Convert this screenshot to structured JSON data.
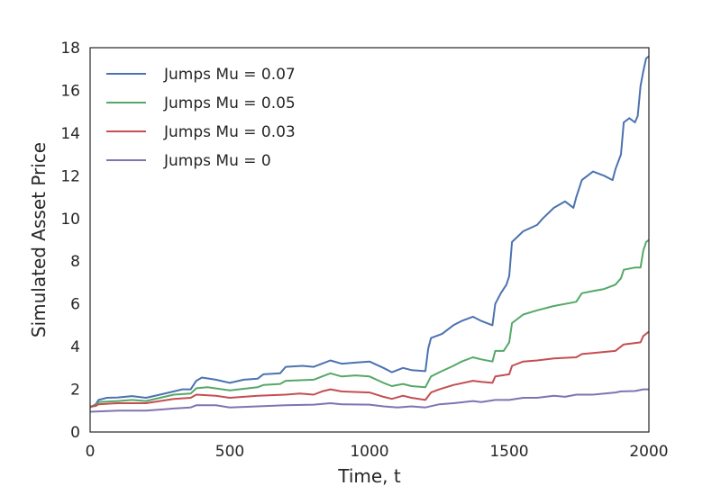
{
  "chart_data": {
    "type": "line",
    "title": "",
    "xlabel": "Time, t",
    "ylabel": "Simulated Asset Price",
    "xlim": [
      0,
      2000
    ],
    "ylim": [
      0,
      18
    ],
    "x_ticks": [
      0,
      500,
      1000,
      1500,
      2000
    ],
    "y_ticks": [
      0,
      2,
      4,
      6,
      8,
      10,
      12,
      14,
      16,
      18
    ],
    "grid": false,
    "legend_position": "top-left",
    "series": [
      {
        "name": "Jumps Mu = 0.07",
        "color": "#4c72b0",
        "points": [
          [
            0,
            1.15
          ],
          [
            20,
            1.3
          ],
          [
            30,
            1.5
          ],
          [
            60,
            1.6
          ],
          [
            100,
            1.62
          ],
          [
            150,
            1.68
          ],
          [
            200,
            1.6
          ],
          [
            250,
            1.75
          ],
          [
            300,
            1.9
          ],
          [
            330,
            2.0
          ],
          [
            360,
            2.0
          ],
          [
            380,
            2.4
          ],
          [
            400,
            2.55
          ],
          [
            450,
            2.45
          ],
          [
            500,
            2.3
          ],
          [
            550,
            2.45
          ],
          [
            600,
            2.5
          ],
          [
            620,
            2.7
          ],
          [
            680,
            2.75
          ],
          [
            700,
            3.05
          ],
          [
            760,
            3.1
          ],
          [
            800,
            3.05
          ],
          [
            830,
            3.2
          ],
          [
            860,
            3.35
          ],
          [
            900,
            3.2
          ],
          [
            950,
            3.25
          ],
          [
            1000,
            3.3
          ],
          [
            1050,
            3.0
          ],
          [
            1080,
            2.8
          ],
          [
            1120,
            3.0
          ],
          [
            1150,
            2.9
          ],
          [
            1200,
            2.85
          ],
          [
            1210,
            3.9
          ],
          [
            1220,
            4.4
          ],
          [
            1260,
            4.6
          ],
          [
            1300,
            5.0
          ],
          [
            1330,
            5.2
          ],
          [
            1370,
            5.4
          ],
          [
            1400,
            5.2
          ],
          [
            1440,
            5.0
          ],
          [
            1450,
            6.0
          ],
          [
            1470,
            6.5
          ],
          [
            1490,
            6.9
          ],
          [
            1500,
            7.3
          ],
          [
            1510,
            8.9
          ],
          [
            1550,
            9.4
          ],
          [
            1600,
            9.7
          ],
          [
            1620,
            10.0
          ],
          [
            1660,
            10.5
          ],
          [
            1700,
            10.8
          ],
          [
            1730,
            10.5
          ],
          [
            1740,
            11.0
          ],
          [
            1760,
            11.8
          ],
          [
            1800,
            12.2
          ],
          [
            1840,
            12.0
          ],
          [
            1870,
            11.8
          ],
          [
            1880,
            12.3
          ],
          [
            1900,
            13.0
          ],
          [
            1910,
            14.5
          ],
          [
            1930,
            14.7
          ],
          [
            1950,
            14.5
          ],
          [
            1960,
            14.8
          ],
          [
            1970,
            16.2
          ],
          [
            1980,
            16.9
          ],
          [
            1990,
            17.5
          ],
          [
            2000,
            17.6
          ]
        ]
      },
      {
        "name": "Jumps Mu = 0.05",
        "color": "#55a868",
        "points": [
          [
            0,
            1.15
          ],
          [
            20,
            1.25
          ],
          [
            30,
            1.4
          ],
          [
            100,
            1.45
          ],
          [
            150,
            1.5
          ],
          [
            200,
            1.45
          ],
          [
            250,
            1.6
          ],
          [
            300,
            1.75
          ],
          [
            360,
            1.8
          ],
          [
            380,
            2.05
          ],
          [
            420,
            2.1
          ],
          [
            500,
            1.95
          ],
          [
            600,
            2.1
          ],
          [
            620,
            2.2
          ],
          [
            680,
            2.25
          ],
          [
            700,
            2.4
          ],
          [
            800,
            2.45
          ],
          [
            830,
            2.6
          ],
          [
            860,
            2.75
          ],
          [
            900,
            2.6
          ],
          [
            950,
            2.65
          ],
          [
            1000,
            2.6
          ],
          [
            1050,
            2.3
          ],
          [
            1080,
            2.15
          ],
          [
            1120,
            2.25
          ],
          [
            1150,
            2.15
          ],
          [
            1200,
            2.1
          ],
          [
            1220,
            2.6
          ],
          [
            1250,
            2.8
          ],
          [
            1300,
            3.1
          ],
          [
            1330,
            3.3
          ],
          [
            1370,
            3.5
          ],
          [
            1400,
            3.4
          ],
          [
            1440,
            3.3
          ],
          [
            1450,
            3.8
          ],
          [
            1480,
            3.8
          ],
          [
            1500,
            4.2
          ],
          [
            1510,
            5.1
          ],
          [
            1550,
            5.5
          ],
          [
            1600,
            5.7
          ],
          [
            1660,
            5.9
          ],
          [
            1700,
            6.0
          ],
          [
            1740,
            6.1
          ],
          [
            1760,
            6.5
          ],
          [
            1800,
            6.6
          ],
          [
            1840,
            6.7
          ],
          [
            1880,
            6.9
          ],
          [
            1900,
            7.2
          ],
          [
            1910,
            7.6
          ],
          [
            1950,
            7.7
          ],
          [
            1970,
            7.7
          ],
          [
            1980,
            8.5
          ],
          [
            1990,
            8.9
          ],
          [
            2000,
            9.0
          ]
        ]
      },
      {
        "name": "Jumps Mu = 0.03",
        "color": "#c44e52",
        "points": [
          [
            0,
            1.2
          ],
          [
            20,
            1.22
          ],
          [
            30,
            1.3
          ],
          [
            100,
            1.35
          ],
          [
            200,
            1.35
          ],
          [
            250,
            1.45
          ],
          [
            300,
            1.55
          ],
          [
            360,
            1.6
          ],
          [
            380,
            1.75
          ],
          [
            450,
            1.7
          ],
          [
            500,
            1.6
          ],
          [
            600,
            1.7
          ],
          [
            700,
            1.75
          ],
          [
            750,
            1.8
          ],
          [
            800,
            1.75
          ],
          [
            830,
            1.9
          ],
          [
            860,
            2.0
          ],
          [
            900,
            1.9
          ],
          [
            1000,
            1.85
          ],
          [
            1050,
            1.65
          ],
          [
            1080,
            1.55
          ],
          [
            1120,
            1.7
          ],
          [
            1150,
            1.6
          ],
          [
            1200,
            1.5
          ],
          [
            1220,
            1.85
          ],
          [
            1250,
            2.0
          ],
          [
            1300,
            2.2
          ],
          [
            1370,
            2.4
          ],
          [
            1400,
            2.35
          ],
          [
            1440,
            2.3
          ],
          [
            1450,
            2.6
          ],
          [
            1500,
            2.7
          ],
          [
            1510,
            3.1
          ],
          [
            1550,
            3.3
          ],
          [
            1600,
            3.35
          ],
          [
            1660,
            3.45
          ],
          [
            1740,
            3.5
          ],
          [
            1760,
            3.65
          ],
          [
            1800,
            3.7
          ],
          [
            1880,
            3.8
          ],
          [
            1900,
            4.0
          ],
          [
            1910,
            4.1
          ],
          [
            1970,
            4.2
          ],
          [
            1980,
            4.5
          ],
          [
            2000,
            4.7
          ]
        ]
      },
      {
        "name": "Jumps Mu = 0",
        "color": "#8172b2",
        "points": [
          [
            0,
            0.95
          ],
          [
            100,
            1.0
          ],
          [
            200,
            1.0
          ],
          [
            250,
            1.05
          ],
          [
            300,
            1.1
          ],
          [
            360,
            1.15
          ],
          [
            380,
            1.25
          ],
          [
            450,
            1.25
          ],
          [
            500,
            1.15
          ],
          [
            600,
            1.2
          ],
          [
            700,
            1.25
          ],
          [
            800,
            1.28
          ],
          [
            860,
            1.35
          ],
          [
            900,
            1.3
          ],
          [
            1000,
            1.28
          ],
          [
            1050,
            1.2
          ],
          [
            1100,
            1.15
          ],
          [
            1150,
            1.2
          ],
          [
            1200,
            1.15
          ],
          [
            1250,
            1.3
          ],
          [
            1300,
            1.35
          ],
          [
            1370,
            1.45
          ],
          [
            1400,
            1.4
          ],
          [
            1450,
            1.5
          ],
          [
            1500,
            1.5
          ],
          [
            1550,
            1.6
          ],
          [
            1600,
            1.6
          ],
          [
            1660,
            1.7
          ],
          [
            1700,
            1.65
          ],
          [
            1740,
            1.75
          ],
          [
            1800,
            1.75
          ],
          [
            1880,
            1.85
          ],
          [
            1900,
            1.9
          ],
          [
            1950,
            1.92
          ],
          [
            1980,
            2.0
          ],
          [
            2000,
            2.0
          ]
        ]
      }
    ]
  }
}
